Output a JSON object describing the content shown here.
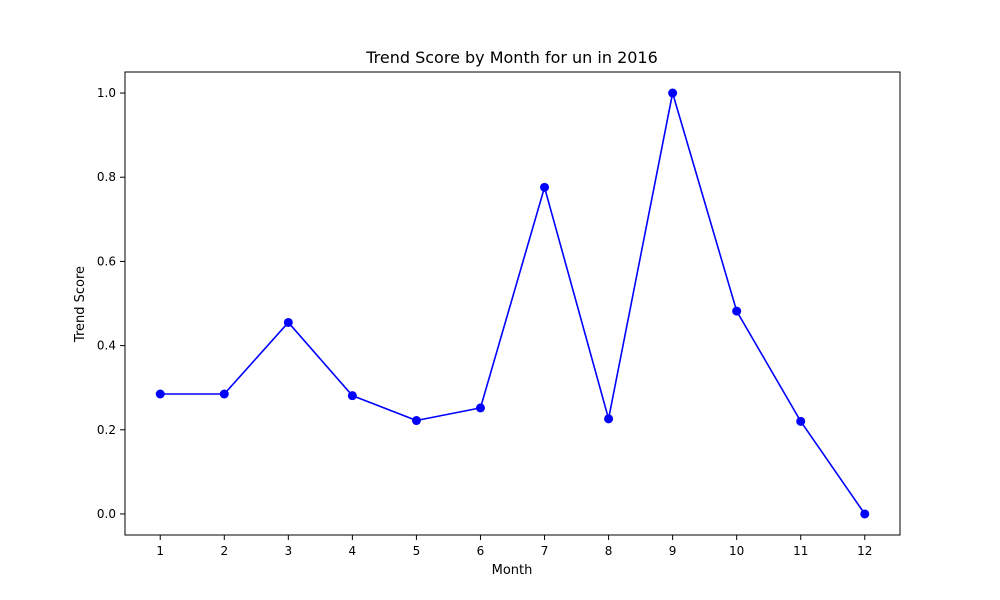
{
  "chart_data": {
    "type": "line",
    "title": "Trend Score by Month for un in 2016",
    "xlabel": "Month",
    "ylabel": "Trend Score",
    "x": [
      1,
      2,
      3,
      4,
      5,
      6,
      7,
      8,
      9,
      10,
      11,
      12
    ],
    "x_ticks": [
      "1",
      "2",
      "3",
      "4",
      "5",
      "6",
      "7",
      "8",
      "9",
      "10",
      "11",
      "12"
    ],
    "y_ticks": [
      "0.0",
      "0.2",
      "0.4",
      "0.6",
      "0.8",
      "1.0"
    ],
    "y_tick_values": [
      0.0,
      0.2,
      0.4,
      0.6,
      0.8,
      1.0
    ],
    "xlim": [
      0.45,
      12.55
    ],
    "ylim": [
      -0.05,
      1.05
    ],
    "grid": false,
    "legend": "none",
    "series": [
      {
        "values": [
          0.285,
          0.285,
          0.455,
          0.281,
          0.222,
          0.252,
          0.776,
          0.226,
          1.0,
          0.482,
          0.22,
          0.0
        ],
        "color": "#0000ff",
        "marker": "circle"
      }
    ]
  }
}
